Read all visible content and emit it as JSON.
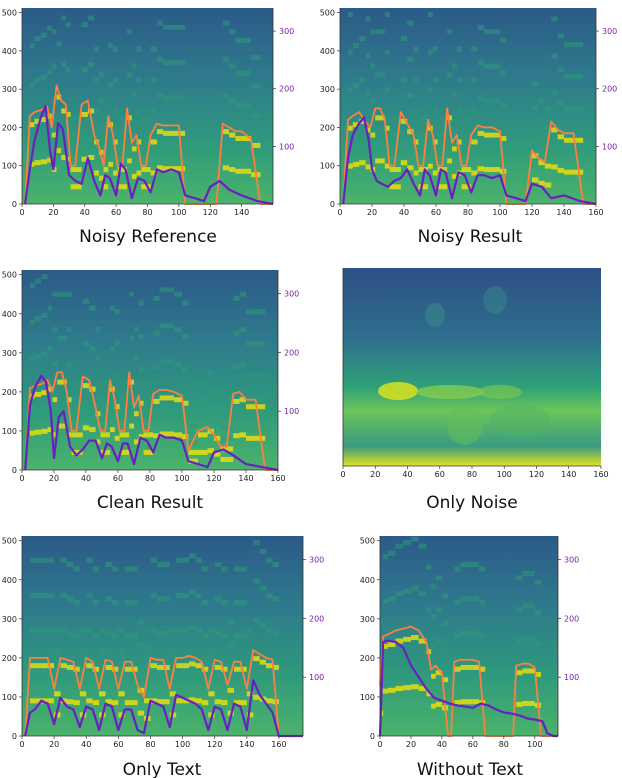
{
  "colors": {
    "f0_curve": "#ff7f3f",
    "energy_curve": "#6a1fc0",
    "right_axis_text": "#7b1fa2",
    "spec_low": "#2a5a8c",
    "spec_mid": "#2e9a7a",
    "spec_high": "#ffe600"
  },
  "chart_data": [
    {
      "type": "heatmap",
      "title": "Noisy Reference",
      "xlim": [
        0,
        160
      ],
      "ylim": [
        0,
        512
      ],
      "y2lim": [
        0,
        340
      ],
      "xticks": [
        "0",
        "20",
        "40",
        "60",
        "80",
        "100",
        "120",
        "140"
      ],
      "yticks": [
        "0",
        "100",
        "200",
        "300",
        "400",
        "500"
      ],
      "y2ticks": [
        "100",
        "200",
        "300"
      ],
      "series": [
        {
          "x": [
            2,
            5,
            8,
            12,
            16,
            19,
            22,
            25,
            28,
            31,
            34,
            38,
            42,
            46,
            49,
            52,
            55,
            58,
            61,
            64,
            67,
            70,
            73,
            76,
            79,
            82,
            86,
            90,
            95,
            100,
            104,
            112,
            116,
            120,
            124,
            128,
            132,
            136,
            140,
            146,
            152,
            160
          ],
          "y": [
            0,
            230,
            240,
            245,
            255,
            200,
            310,
            270,
            260,
            100,
            100,
            260,
            270,
            180,
            150,
            100,
            230,
            180,
            100,
            100,
            250,
            160,
            180,
            100,
            100,
            180,
            210,
            205,
            205,
            205,
            0,
            0,
            0,
            0,
            0,
            210,
            200,
            190,
            190,
            170,
            0,
            0
          ]
        },
        {
          "x": [
            2,
            5,
            8,
            12,
            15,
            18,
            20,
            23,
            26,
            30,
            34,
            38,
            42,
            46,
            50,
            53,
            56,
            60,
            63,
            66,
            70,
            74,
            78,
            82,
            86,
            90,
            95,
            100,
            104,
            110,
            116,
            120,
            126,
            132,
            140,
            150,
            160
          ],
          "y": [
            0,
            60,
            110,
            150,
            170,
            90,
            60,
            140,
            130,
            50,
            40,
            35,
            80,
            40,
            15,
            50,
            45,
            15,
            70,
            60,
            10,
            45,
            40,
            20,
            60,
            55,
            60,
            55,
            15,
            10,
            5,
            30,
            40,
            25,
            15,
            5,
            0
          ]
        }
      ]
    },
    {
      "type": "heatmap",
      "title": "Noisy Result",
      "xlim": [
        0,
        160
      ],
      "ylim": [
        0,
        512
      ],
      "y2lim": [
        0,
        340
      ],
      "xticks": [
        "0",
        "20",
        "40",
        "60",
        "80",
        "100",
        "120",
        "140",
        "160"
      ],
      "yticks": [
        "0",
        "100",
        "200",
        "300",
        "400",
        "500"
      ],
      "y2ticks": [
        "100",
        "200",
        "300"
      ],
      "series": [
        {
          "x": [
            2,
            5,
            8,
            12,
            16,
            19,
            22,
            25,
            28,
            31,
            34,
            38,
            42,
            46,
            49,
            52,
            55,
            58,
            61,
            64,
            67,
            70,
            73,
            76,
            79,
            82,
            86,
            90,
            95,
            100,
            104,
            110,
            116,
            120,
            124,
            128,
            132,
            136,
            140,
            146,
            152,
            160
          ],
          "y": [
            0,
            220,
            230,
            240,
            215,
            200,
            250,
            250,
            220,
            100,
            100,
            240,
            210,
            180,
            100,
            100,
            220,
            180,
            100,
            100,
            250,
            160,
            180,
            100,
            100,
            180,
            205,
            200,
            200,
            190,
            0,
            0,
            0,
            140,
            120,
            110,
            215,
            195,
            185,
            185,
            0,
            0
          ]
        },
        {
          "x": [
            2,
            5,
            8,
            12,
            15,
            18,
            20,
            23,
            26,
            30,
            34,
            38,
            42,
            46,
            50,
            53,
            56,
            60,
            63,
            66,
            70,
            74,
            78,
            82,
            86,
            90,
            95,
            100,
            104,
            110,
            116,
            120,
            126,
            132,
            140,
            150,
            160
          ],
          "y": [
            0,
            80,
            120,
            140,
            150,
            110,
            60,
            40,
            35,
            30,
            40,
            45,
            60,
            35,
            15,
            60,
            50,
            15,
            60,
            55,
            10,
            55,
            50,
            20,
            50,
            50,
            45,
            50,
            15,
            10,
            5,
            35,
            30,
            10,
            15,
            5,
            0
          ]
        }
      ]
    },
    {
      "type": "heatmap",
      "title": "Clean Result",
      "xlim": [
        0,
        160
      ],
      "ylim": [
        0,
        512
      ],
      "y2lim": [
        0,
        340
      ],
      "xticks": [
        "0",
        "20",
        "40",
        "60",
        "80",
        "100",
        "120",
        "140",
        "160"
      ],
      "yticks": [
        "0",
        "100",
        "200",
        "300",
        "400",
        "500"
      ],
      "y2ticks": [
        "100",
        "200",
        "300"
      ],
      "series": [
        {
          "x": [
            2,
            5,
            8,
            12,
            16,
            19,
            22,
            25,
            28,
            31,
            34,
            38,
            42,
            46,
            49,
            52,
            55,
            58,
            61,
            64,
            67,
            70,
            73,
            76,
            79,
            82,
            86,
            90,
            95,
            100,
            104,
            110,
            116,
            120,
            124,
            128,
            132,
            136,
            140,
            146,
            152,
            160
          ],
          "y": [
            0,
            210,
            215,
            220,
            230,
            200,
            250,
            250,
            200,
            100,
            100,
            240,
            230,
            160,
            100,
            100,
            230,
            180,
            100,
            100,
            250,
            160,
            190,
            100,
            100,
            195,
            205,
            205,
            200,
            190,
            50,
            100,
            110,
            90,
            60,
            60,
            195,
            200,
            180,
            180,
            0,
            0
          ]
        },
        {
          "x": [
            2,
            5,
            8,
            12,
            15,
            18,
            20,
            23,
            26,
            30,
            34,
            38,
            42,
            46,
            50,
            53,
            56,
            60,
            63,
            66,
            70,
            74,
            78,
            82,
            86,
            90,
            95,
            100,
            104,
            110,
            116,
            120,
            126,
            132,
            140,
            150,
            160
          ],
          "y": [
            0,
            110,
            140,
            160,
            150,
            100,
            20,
            90,
            100,
            40,
            25,
            35,
            50,
            50,
            20,
            45,
            40,
            15,
            45,
            45,
            10,
            55,
            50,
            30,
            60,
            55,
            55,
            50,
            15,
            10,
            5,
            30,
            35,
            25,
            10,
            5,
            0
          ]
        }
      ]
    },
    {
      "type": "heatmap",
      "title": "Only Noise",
      "xlim": [
        0,
        160
      ],
      "ylim": [
        0,
        512
      ],
      "y2lim": [
        0,
        340
      ],
      "xticks": [
        "0",
        "20",
        "40",
        "60",
        "80",
        "100",
        "120",
        "140",
        "160"
      ],
      "yticks": [],
      "y2ticks": [],
      "series": []
    },
    {
      "type": "heatmap",
      "title": "Only Text",
      "xlim": [
        0,
        175
      ],
      "ylim": [
        0,
        512
      ],
      "y2lim": [
        0,
        340
      ],
      "xticks": [
        "0",
        "20",
        "40",
        "60",
        "80",
        "100",
        "120",
        "140",
        "160"
      ],
      "yticks": [
        "0",
        "100",
        "200",
        "300",
        "400",
        "500"
      ],
      "y2ticks": [
        "100",
        "200",
        "300"
      ],
      "series": [
        {
          "x": [
            2,
            5,
            8,
            12,
            16,
            20,
            24,
            28,
            32,
            36,
            40,
            44,
            48,
            52,
            56,
            60,
            64,
            68,
            72,
            76,
            80,
            84,
            88,
            92,
            96,
            100,
            104,
            108,
            112,
            116,
            120,
            124,
            128,
            132,
            136,
            140,
            144,
            148,
            152,
            156,
            160,
            175
          ],
          "y": [
            0,
            200,
            200,
            200,
            200,
            120,
            200,
            195,
            190,
            120,
            200,
            190,
            120,
            195,
            190,
            120,
            190,
            190,
            130,
            100,
            200,
            195,
            195,
            120,
            200,
            200,
            205,
            200,
            190,
            120,
            195,
            190,
            130,
            190,
            190,
            120,
            220,
            210,
            200,
            195,
            0,
            0
          ]
        },
        {
          "x": [
            2,
            5,
            8,
            12,
            16,
            20,
            24,
            28,
            32,
            36,
            40,
            44,
            48,
            52,
            56,
            60,
            64,
            68,
            72,
            76,
            80,
            84,
            88,
            92,
            96,
            100,
            104,
            108,
            112,
            116,
            120,
            124,
            128,
            132,
            136,
            140,
            144,
            148,
            152,
            156,
            160,
            175
          ],
          "y": [
            0,
            40,
            45,
            60,
            55,
            20,
            65,
            50,
            45,
            15,
            50,
            45,
            10,
            55,
            50,
            10,
            45,
            45,
            10,
            5,
            60,
            55,
            50,
            15,
            70,
            65,
            60,
            55,
            45,
            10,
            50,
            45,
            10,
            55,
            50,
            10,
            95,
            70,
            55,
            40,
            0,
            0
          ]
        }
      ]
    },
    {
      "type": "heatmap",
      "title": "Without Text",
      "xlim": [
        0,
        115
      ],
      "ylim": [
        0,
        512
      ],
      "y2lim": [
        0,
        340
      ],
      "xticks": [
        "0",
        "20",
        "40",
        "60",
        "80",
        "100"
      ],
      "yticks": [
        "0",
        "100",
        "200",
        "300",
        "400",
        "500"
      ],
      "y2ticks": [
        "100",
        "200",
        "300"
      ],
      "series": [
        {
          "x": [
            0,
            2,
            5,
            10,
            15,
            20,
            25,
            30,
            33,
            36,
            40,
            44,
            46,
            48,
            52,
            56,
            60,
            64,
            68,
            70,
            74,
            80,
            86,
            88,
            92,
            96,
            100,
            104,
            108,
            115
          ],
          "y": [
            130,
            255,
            260,
            270,
            275,
            280,
            270,
            240,
            170,
            180,
            160,
            0,
            0,
            190,
            195,
            195,
            195,
            190,
            0,
            0,
            0,
            0,
            0,
            180,
            185,
            185,
            175,
            0,
            0,
            0
          ]
        },
        {
          "x": [
            0,
            2,
            5,
            10,
            15,
            20,
            25,
            30,
            35,
            40,
            45,
            50,
            55,
            60,
            65,
            70,
            75,
            80,
            85,
            90,
            95,
            100,
            105,
            108,
            112,
            115
          ],
          "y": [
            0,
            160,
            162,
            160,
            150,
            120,
            100,
            80,
            65,
            60,
            55,
            52,
            50,
            48,
            55,
            52,
            45,
            40,
            38,
            35,
            30,
            28,
            25,
            5,
            0,
            0
          ]
        }
      ]
    }
  ]
}
